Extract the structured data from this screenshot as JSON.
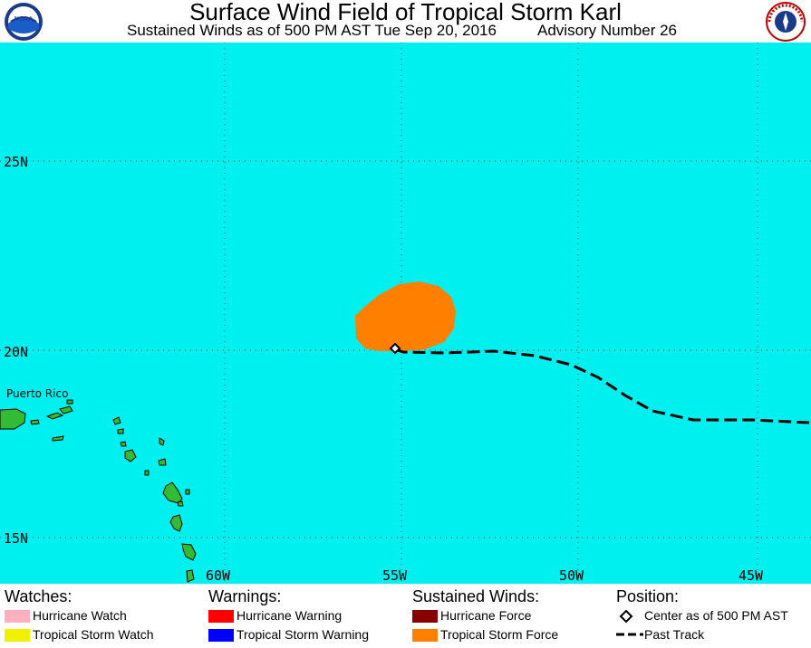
{
  "header": {
    "title": "Surface Wind Field of Tropical Storm Karl",
    "subtitle": "Sustained Winds as of 500 PM AST Tue Sep 20, 2016",
    "advisory": "Advisory Number 26"
  },
  "map": {
    "latitude_labels": [
      "25N",
      "20N",
      "15N"
    ],
    "longitude_labels": [
      "60W",
      "55W",
      "50W",
      "45W"
    ],
    "place_label": "Puerto Rico",
    "colors": {
      "ocean": "#00f0f0",
      "land": "#33bb33",
      "tropical_storm_force": "#ff8000",
      "track": "#000000"
    }
  },
  "legend": {
    "watches": {
      "title": "Watches:",
      "items": [
        {
          "label": "Hurricane Watch",
          "color": "#ffb0c0"
        },
        {
          "label": "Tropical Storm Watch",
          "color": "#f0f000"
        }
      ]
    },
    "warnings": {
      "title": "Warnings:",
      "items": [
        {
          "label": "Hurricane Warning",
          "color": "#ff0000"
        },
        {
          "label": "Tropical Storm Warning",
          "color": "#0000ff"
        }
      ]
    },
    "winds": {
      "title": "Sustained Winds:",
      "items": [
        {
          "label": "Hurricane Force",
          "color": "#880000"
        },
        {
          "label": "Tropical Storm Force",
          "color": "#ff8000"
        }
      ]
    },
    "position": {
      "title": "Position:",
      "items": [
        {
          "label": "Center as of 500 PM AST",
          "icon": "diamond-icon"
        },
        {
          "label": "Past Track",
          "icon": "dashed-line-icon"
        }
      ]
    }
  }
}
